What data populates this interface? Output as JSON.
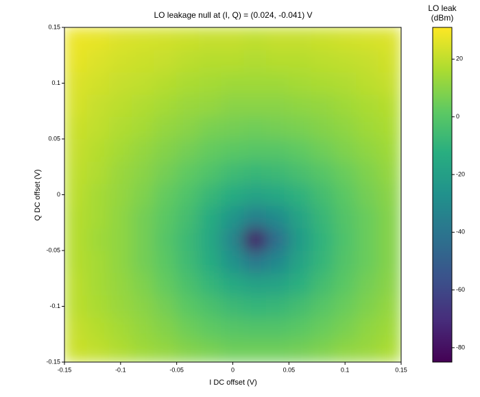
{
  "chart_data": {
    "type": "heatmap",
    "title": "LO leakage null at (I, Q) = (0.024, -0.041) V",
    "x_label": "I DC offset (V)",
    "y_label": "Q DC offset (V)",
    "x": [
      -0.14,
      -0.12,
      -0.1,
      -0.08,
      -0.06,
      -0.04,
      -0.02,
      0,
      0.02,
      0.04,
      0.06,
      0.08,
      0.1,
      0.12,
      0.14
    ],
    "y": [
      -0.14,
      -0.12,
      -0.1,
      -0.08,
      -0.06,
      -0.04,
      -0.02,
      0,
      0.02,
      0.04,
      0.06,
      0.08,
      0.1,
      0.12,
      0.14
    ],
    "z": [
      [
        22,
        20,
        17,
        14,
        12,
        9,
        7,
        5,
        5,
        5,
        6,
        8,
        11,
        13,
        16
      ],
      [
        21,
        18,
        15,
        12,
        9,
        5,
        2,
        0,
        -1,
        -1,
        1,
        4,
        7,
        11,
        14
      ],
      [
        19,
        16,
        13,
        10,
        6,
        1,
        -3,
        -7,
        -9,
        -8,
        -5,
        0,
        4,
        8,
        12
      ],
      [
        19,
        15,
        12,
        8,
        3,
        -3,
        -9,
        -15,
        -19,
        -18,
        -12,
        -5,
        1,
        6,
        10
      ],
      [
        18,
        15,
        11,
        6,
        1,
        -6,
        -14,
        -26,
        -38,
        -31,
        -18,
        -9,
        -1,
        4,
        9
      ],
      [
        18,
        14,
        11,
        6,
        0,
        -7,
        -16,
        -32,
        -78,
        -43,
        -22,
        -10,
        -2,
        4,
        9
      ],
      [
        18,
        15,
        11,
        6,
        1,
        -5,
        -14,
        -25,
        -35,
        -30,
        -18,
        -8,
        -1,
        4,
        9
      ],
      [
        19,
        15,
        12,
        8,
        3,
        -2,
        -8,
        -14,
        -18,
        -16,
        -11,
        -5,
        1,
        6,
        10
      ],
      [
        20,
        17,
        13,
        10,
        6,
        2,
        -2,
        -6,
        -8,
        -7,
        -4,
        0,
        4,
        8,
        12
      ],
      [
        21,
        18,
        15,
        12,
        9,
        6,
        3,
        1,
        0,
        0,
        2,
        5,
        8,
        11,
        14
      ],
      [
        22,
        20,
        17,
        15,
        12,
        10,
        7,
        6,
        5,
        6,
        7,
        9,
        11,
        14,
        16
      ],
      [
        24,
        21,
        19,
        17,
        15,
        13,
        12,
        10,
        10,
        10,
        11,
        12,
        14,
        16,
        18
      ],
      [
        25,
        23,
        21,
        20,
        18,
        16,
        15,
        14,
        14,
        14,
        15,
        16,
        17,
        19,
        21
      ],
      [
        27,
        25,
        23,
        22,
        21,
        19,
        18,
        18,
        17,
        18,
        18,
        19,
        20,
        21,
        23
      ],
      [
        28,
        27,
        25,
        24,
        23,
        22,
        21,
        21,
        20,
        21,
        21,
        22,
        23,
        24,
        25
      ]
    ],
    "xlim": [
      -0.15,
      0.15
    ],
    "ylim": [
      -0.15,
      0.15
    ],
    "xticks": [
      -0.15,
      -0.1,
      -0.05,
      0,
      0.05,
      0.1,
      0.15
    ],
    "yticks": [
      -0.15,
      -0.1,
      -0.05,
      0,
      0.05,
      0.1,
      0.15
    ],
    "colormap": "viridis",
    "clim": [
      -85,
      31
    ],
    "colorbar": {
      "label": [
        "LO leak",
        "(dBm)"
      ],
      "ticks": [
        -80,
        -60,
        -40,
        -20,
        0,
        20
      ]
    }
  }
}
